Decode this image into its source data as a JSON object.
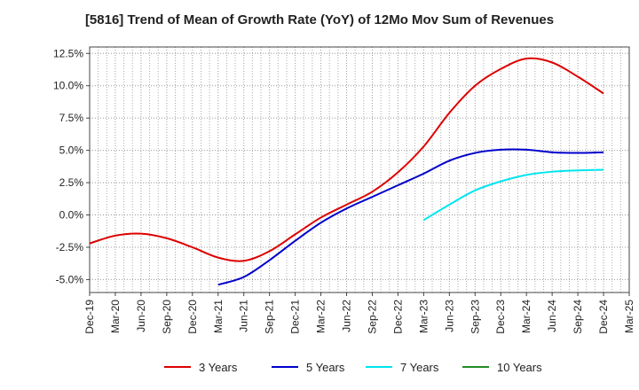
{
  "chart_data": {
    "type": "line",
    "title": "[5816]  Trend of Mean of Growth Rate (YoY) of 12Mo Mov Sum of Revenues",
    "xlabel": "",
    "ylabel": "",
    "ylim": [
      -6.0,
      13.0
    ],
    "y_ticks": [
      -5.0,
      -2.5,
      0.0,
      2.5,
      5.0,
      7.5,
      10.0,
      12.5
    ],
    "y_tick_labels": [
      "-5.0%",
      "-2.5%",
      "0.0%",
      "2.5%",
      "5.0%",
      "7.5%",
      "10.0%",
      "12.5%"
    ],
    "x_tick_labels": [
      "Dec-19",
      "Mar-20",
      "Jun-20",
      "Sep-20",
      "Dec-20",
      "Mar-21",
      "Jun-21",
      "Sep-21",
      "Dec-21",
      "Mar-22",
      "Jun-22",
      "Sep-22",
      "Dec-22",
      "Mar-23",
      "Jun-23",
      "Sep-23",
      "Dec-23",
      "Mar-24",
      "Jun-24",
      "Sep-24",
      "Dec-24",
      "Mar-25"
    ],
    "grid": true,
    "legend_position": "bottom",
    "series": [
      {
        "name": "3 Years",
        "color": "#dd0000",
        "points": [
          [
            0,
            -2.2
          ],
          [
            1,
            -1.6
          ],
          [
            2,
            -1.45
          ],
          [
            3,
            -1.8
          ],
          [
            4,
            -2.5
          ],
          [
            5,
            -3.3
          ],
          [
            6,
            -3.55
          ],
          [
            7,
            -2.8
          ],
          [
            8,
            -1.5
          ],
          [
            9,
            -0.2
          ],
          [
            10,
            0.8
          ],
          [
            11,
            1.8
          ],
          [
            12,
            3.3
          ],
          [
            13,
            5.3
          ],
          [
            14,
            7.9
          ],
          [
            15,
            10.0
          ],
          [
            16,
            11.3
          ],
          [
            17,
            12.1
          ],
          [
            18,
            11.8
          ],
          [
            19,
            10.7
          ],
          [
            20,
            9.4
          ]
        ]
      },
      {
        "name": "5 Years",
        "color": "#0000cc",
        "points": [
          [
            5,
            -5.4
          ],
          [
            6,
            -4.8
          ],
          [
            7,
            -3.5
          ],
          [
            8,
            -2.0
          ],
          [
            9,
            -0.6
          ],
          [
            10,
            0.5
          ],
          [
            11,
            1.4
          ],
          [
            12,
            2.3
          ],
          [
            13,
            3.2
          ],
          [
            14,
            4.2
          ],
          [
            15,
            4.8
          ],
          [
            16,
            5.05
          ],
          [
            17,
            5.05
          ],
          [
            18,
            4.85
          ],
          [
            19,
            4.8
          ],
          [
            20,
            4.85
          ]
        ]
      },
      {
        "name": "7 Years",
        "color": "#00e5ee",
        "points": [
          [
            13,
            -0.4
          ],
          [
            14,
            0.8
          ],
          [
            15,
            1.9
          ],
          [
            16,
            2.6
          ],
          [
            17,
            3.1
          ],
          [
            18,
            3.35
          ],
          [
            19,
            3.45
          ],
          [
            20,
            3.5
          ]
        ]
      },
      {
        "name": "10 Years",
        "color": "#228b22",
        "points": []
      }
    ]
  }
}
